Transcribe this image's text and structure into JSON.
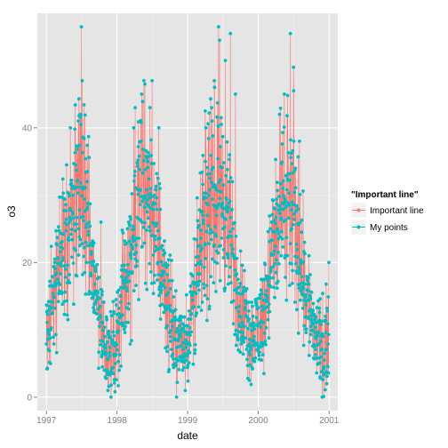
{
  "chart_data": {
    "type": "line",
    "xlabel": "date",
    "ylabel": "o3",
    "xlim": [
      "1996-11-15",
      "2001-02-15"
    ],
    "ylim": [
      -2,
      57
    ],
    "x_ticks": [
      "1997-01-01",
      "1998-01-01",
      "1999-01-01",
      "2000-01-01",
      "2001-01-01"
    ],
    "x_tick_labels": [
      "1997",
      "1998",
      "1999",
      "2000",
      "2001"
    ],
    "y_ticks": [
      0,
      20,
      40
    ],
    "y_tick_labels": [
      "0",
      "20",
      "40"
    ],
    "grid": true,
    "legend_position": "right",
    "legend_title": "\"Important line\"",
    "series": [
      {
        "name": "Important line",
        "mark": "line",
        "color": "#F8766D"
      },
      {
        "name": "My points",
        "mark": "line+points",
        "color": "#00BFC4"
      }
    ],
    "anchors": [
      [
        "1997-01-01",
        10
      ],
      [
        "1997-02-01",
        14
      ],
      [
        "1997-03-01",
        18
      ],
      [
        "1997-04-01",
        22
      ],
      [
        "1997-05-01",
        25
      ],
      [
        "1997-06-01",
        30
      ],
      [
        "1997-07-01",
        32
      ],
      [
        "1997-08-01",
        25
      ],
      [
        "1997-09-01",
        18
      ],
      [
        "1997-10-01",
        12
      ],
      [
        "1997-11-01",
        8
      ],
      [
        "1997-12-01",
        6
      ],
      [
        "1998-01-01",
        9
      ],
      [
        "1998-02-01",
        15
      ],
      [
        "1998-03-01",
        20
      ],
      [
        "1998-04-01",
        25
      ],
      [
        "1998-05-01",
        30
      ],
      [
        "1998-06-01",
        31
      ],
      [
        "1998-07-01",
        28
      ],
      [
        "1998-08-01",
        22
      ],
      [
        "1998-09-01",
        18
      ],
      [
        "1998-10-01",
        12
      ],
      [
        "1998-11-01",
        8
      ],
      [
        "1998-12-01",
        8
      ],
      [
        "1999-01-01",
        9
      ],
      [
        "1999-02-01",
        14
      ],
      [
        "1999-03-01",
        20
      ],
      [
        "1999-04-01",
        25
      ],
      [
        "1999-05-01",
        28
      ],
      [
        "1999-06-01",
        30
      ],
      [
        "1999-07-01",
        30
      ],
      [
        "1999-08-01",
        25
      ],
      [
        "1999-09-01",
        18
      ],
      [
        "1999-10-01",
        14
      ],
      [
        "1999-11-01",
        10
      ],
      [
        "1999-12-01",
        9
      ],
      [
        "2000-01-01",
        10
      ],
      [
        "2000-02-01",
        13
      ],
      [
        "2000-03-01",
        19
      ],
      [
        "2000-04-01",
        24
      ],
      [
        "2000-05-01",
        26
      ],
      [
        "2000-06-01",
        28
      ],
      [
        "2000-07-01",
        27
      ],
      [
        "2000-08-01",
        22
      ],
      [
        "2000-09-01",
        16
      ],
      [
        "2000-10-01",
        12
      ],
      [
        "2000-11-01",
        8
      ],
      [
        "2000-12-01",
        7
      ],
      [
        "2000-12-31",
        10
      ]
    ],
    "spikes": [
      [
        "1997-05-05",
        40
      ],
      [
        "1997-06-15",
        41
      ],
      [
        "1997-06-25",
        42
      ],
      [
        "1997-07-01",
        55
      ],
      [
        "1997-07-05",
        47
      ],
      [
        "1997-10-10",
        26
      ],
      [
        "1997-12-01",
        0
      ],
      [
        "1998-04-05",
        43
      ],
      [
        "1998-05-05",
        38
      ],
      [
        "1998-05-20",
        47
      ],
      [
        "1998-06-20",
        43
      ],
      [
        "1998-07-01",
        47
      ],
      [
        "1998-08-05",
        40
      ],
      [
        "1998-12-20",
        1
      ],
      [
        "1999-04-05",
        40
      ],
      [
        "1999-05-20",
        46
      ],
      [
        "1999-06-15",
        53
      ],
      [
        "1999-07-15",
        50
      ],
      [
        "1999-08-10",
        54
      ],
      [
        "1999-09-05",
        45
      ],
      [
        "2000-04-20",
        42
      ],
      [
        "2000-05-15",
        45
      ],
      [
        "2000-06-15",
        54
      ],
      [
        "2000-07-01",
        49
      ],
      [
        "2000-08-01",
        38
      ],
      [
        "2000-11-15",
        3
      ],
      [
        "2000-12-20",
        2
      ],
      [
        "2000-12-31",
        20
      ]
    ]
  }
}
